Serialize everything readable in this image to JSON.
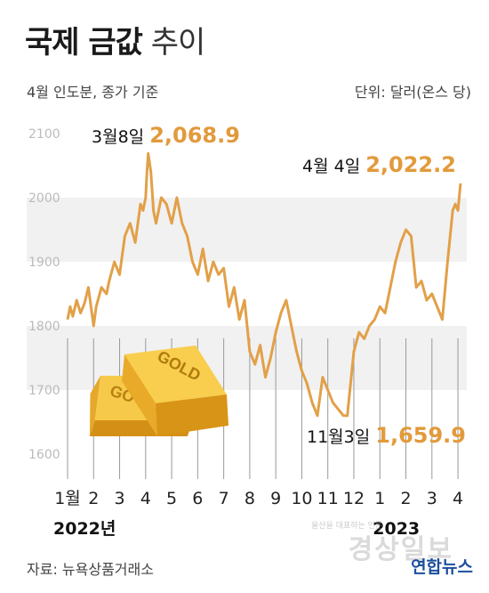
{
  "header": {
    "title_bold": "국제 금값",
    "title_light": "추이",
    "subtitle": "4월 인도분, 종가 기준",
    "unit": "단위: 달러(온스 당)"
  },
  "footer": {
    "source": "자료: 뉴욕상품거래소",
    "logo": "연합뉴스",
    "watermark": "경상일보",
    "watermark_small": "울산을 대표하는 언론"
  },
  "colors": {
    "line": "#E2A048",
    "highlight": "#E29A3B",
    "gold": "#F0B62E"
  },
  "gold_bar": {
    "label_front": "GOLD",
    "label_back": "GO"
  },
  "chart_data": {
    "type": "line",
    "title": "국제 금값 추이",
    "ylim": [
      1600,
      2100
    ],
    "yticks": [
      1600,
      1700,
      1800,
      1900,
      2000,
      2100
    ],
    "xlim": [
      0,
      15.1
    ],
    "xtick_labels": [
      "1월",
      "2",
      "3",
      "4",
      "5",
      "6",
      "7",
      "8",
      "9",
      "10",
      "11",
      "12",
      "1",
      "2",
      "3",
      "4"
    ],
    "year_labels": [
      {
        "label": "2022년",
        "x": 0
      },
      {
        "label": "2023",
        "x": 12
      }
    ],
    "series": [
      {
        "x": [
          0,
          0.1,
          0.2,
          0.35,
          0.5,
          0.65,
          0.8,
          1.0,
          1.1,
          1.3,
          1.5,
          1.6,
          1.8,
          2.0,
          2.2,
          2.4,
          2.6,
          2.8,
          2.9,
          3.0,
          3.05,
          3.1,
          3.2,
          3.3,
          3.4,
          3.6,
          3.8,
          4.0,
          4.2,
          4.4,
          4.6,
          4.8,
          5.0,
          5.2,
          5.4,
          5.6,
          5.8,
          6.0,
          6.2,
          6.4,
          6.6,
          6.8,
          7.0,
          7.2,
          7.4,
          7.6,
          7.8,
          8.0,
          8.2,
          8.4,
          8.6,
          8.8,
          9.0,
          9.2,
          9.4,
          9.6,
          9.8,
          10.0,
          10.2,
          10.4,
          10.6,
          10.75,
          10.8,
          11.0,
          11.2,
          11.4,
          11.6,
          11.8,
          12.0,
          12.2,
          12.4,
          12.6,
          12.8,
          13.0,
          13.2,
          13.4,
          13.6,
          13.8,
          14.0,
          14.2,
          14.4,
          14.6,
          14.8,
          14.9,
          15.0,
          15.1
        ],
        "y": [
          1810,
          1830,
          1815,
          1840,
          1820,
          1835,
          1860,
          1800,
          1830,
          1860,
          1850,
          1870,
          1900,
          1880,
          1940,
          1960,
          1930,
          1990,
          1980,
          2000,
          2040,
          2068.9,
          2040,
          1980,
          1960,
          2000,
          1990,
          1960,
          2000,
          1960,
          1940,
          1900,
          1880,
          1920,
          1870,
          1900,
          1880,
          1890,
          1830,
          1860,
          1810,
          1840,
          1760,
          1740,
          1770,
          1720,
          1750,
          1790,
          1820,
          1840,
          1800,
          1760,
          1730,
          1710,
          1680,
          1660,
          1720,
          1700,
          1680,
          1670,
          1660,
          1659.9,
          1680,
          1760,
          1790,
          1780,
          1800,
          1810,
          1830,
          1820,
          1860,
          1900,
          1930,
          1950,
          1940,
          1860,
          1870,
          1840,
          1850,
          1830,
          1810,
          1900,
          1980,
          1990,
          1980,
          2022.2
        ]
      }
    ],
    "annotations": [
      {
        "date_label": "3월8일",
        "value_label": "2,068.9",
        "x": 3.1,
        "y": 2068.9
      },
      {
        "date_label": "4월 4일",
        "value_label": "2,022.2",
        "x": 15.1,
        "y": 2022.2
      },
      {
        "date_label": "11월3일",
        "value_label": "1,659.9",
        "x": 10.75,
        "y": 1659.9
      }
    ],
    "grid": "alternating horizontal bands",
    "legend": "none"
  }
}
